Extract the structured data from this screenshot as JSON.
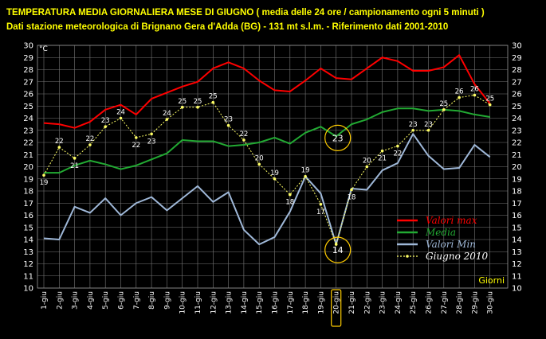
{
  "header": {
    "line1": "TEMPERATURA MEDIA GIORNALIERA MESE DI GIUGNO ( media delle 24 ore / campionamento ogni 5 minuti )",
    "line2": "Dati stazione meteorologica di Brignano Gera d'Adda (BG) - 131 mt s.l.m. - Riferimento dati 2001-2010"
  },
  "colors": {
    "max": "#ff0000",
    "media": "#22aa33",
    "min": "#9fb8d8",
    "giugno2010": "#ffff66",
    "highlight": "#ffcc00",
    "grid": "#777777"
  },
  "chart_data": {
    "type": "line",
    "unit_label": "°C",
    "xlabel": "Giorni",
    "ylim": [
      10,
      30
    ],
    "yticks": [
      10,
      11,
      12,
      13,
      14,
      15,
      16,
      17,
      18,
      19,
      20,
      21,
      22,
      23,
      24,
      25,
      26,
      27,
      28,
      29,
      30
    ],
    "grid": true,
    "legend_position": "bottom-right",
    "categories": [
      "1-giu",
      "2-giu",
      "3-giu",
      "4-giu",
      "5-giu",
      "6-giu",
      "7-giu",
      "8-giu",
      "9-giu",
      "10-giu",
      "11-giu",
      "12-giu",
      "13-giu",
      "14-giu",
      "15-giu",
      "16-giu",
      "17-giu",
      "18-giu",
      "19-giu",
      "20-giu",
      "21-giu",
      "22-giu",
      "23-giu",
      "24-giu",
      "25-giu",
      "26-giu",
      "27-giu",
      "28-giu",
      "29-giu",
      "30-giu"
    ],
    "highlight_category": "20-giu",
    "series": [
      {
        "name": "Valori max",
        "key": "max",
        "values": [
          23.6,
          23.5,
          23.2,
          23.7,
          24.7,
          25.1,
          24.3,
          25.6,
          26.1,
          26.6,
          27.0,
          28.1,
          28.6,
          28.1,
          27.1,
          26.3,
          26.2,
          27.1,
          28.1,
          27.3,
          27.2,
          28.1,
          29.0,
          28.7,
          27.9,
          27.9,
          28.2,
          29.2,
          26.8,
          25.2
        ]
      },
      {
        "name": "Media",
        "key": "media",
        "values": [
          19.5,
          19.5,
          20.1,
          20.5,
          20.2,
          19.8,
          20.1,
          20.6,
          21.1,
          22.2,
          22.1,
          22.1,
          21.7,
          21.8,
          22.0,
          22.4,
          21.9,
          22.8,
          23.3,
          22.5,
          23.5,
          23.9,
          24.5,
          24.8,
          24.8,
          24.6,
          24.7,
          24.6,
          24.3,
          24.1
        ]
      },
      {
        "name": "Valori Min",
        "key": "min",
        "values": [
          14.1,
          14.0,
          16.7,
          16.2,
          17.4,
          16.0,
          17.0,
          17.5,
          16.4,
          17.4,
          18.4,
          17.1,
          17.9,
          14.8,
          13.6,
          14.2,
          16.3,
          19.2,
          17.8,
          13.6,
          18.2,
          18.1,
          19.7,
          20.3,
          22.7,
          20.9,
          19.8,
          19.9,
          21.8,
          20.8
        ]
      },
      {
        "name": "Giugno 2010",
        "key": "giugno2010",
        "values": [
          19,
          22,
          21,
          22,
          23,
          24,
          22,
          23,
          24,
          25,
          25,
          25,
          23,
          22,
          20,
          19,
          18,
          19,
          17,
          14,
          18,
          20,
          21,
          22,
          23,
          23,
          25,
          26,
          26,
          25
        ],
        "plot_values": [
          19.3,
          21.6,
          20.7,
          21.8,
          23.3,
          24.0,
          22.4,
          22.7,
          23.9,
          24.9,
          24.9,
          25.3,
          23.4,
          22.2,
          20.2,
          19.0,
          17.7,
          19.2,
          16.9,
          13.6,
          18.1,
          20.0,
          21.3,
          21.7,
          23.0,
          23.0,
          24.7,
          25.7,
          25.9,
          25.1
        ]
      }
    ],
    "annotations": [
      {
        "category": "20-giu",
        "value": 23,
        "series": "Media"
      },
      {
        "category": "20-giu",
        "value": 14,
        "series": "Giugno 2010"
      }
    ]
  }
}
